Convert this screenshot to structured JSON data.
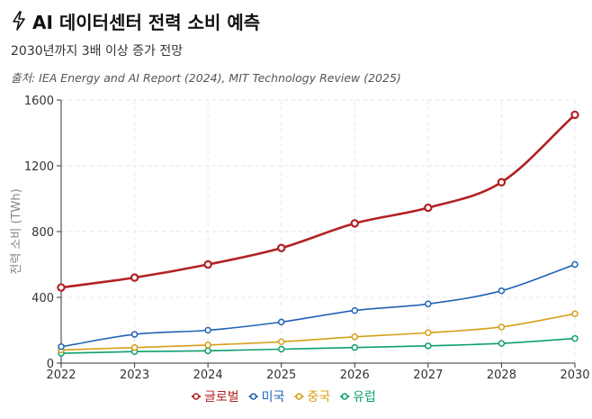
{
  "header": {
    "title": "AI 데이터센터 전력 소비 예측",
    "subtitle": "2030년까지 3배 이상 증가 전망",
    "source": "출처: IEA Energy and AI Report (2024), MIT Technology Review (2025)",
    "icon": "lightning-icon"
  },
  "chart_data": {
    "type": "line",
    "title": "AI 데이터센터 전력 소비 예측",
    "subtitle": "2030년까지 3배 이상 증가 전망",
    "xlabel": "",
    "ylabel": "전력 소비 (TWh)",
    "x": [
      "2022",
      "2023",
      "2024",
      "2025",
      "2026",
      "2027",
      "2028",
      "2030"
    ],
    "ylim": [
      0,
      1600
    ],
    "yticks": [
      "0",
      "400",
      "800",
      "1200",
      "1600"
    ],
    "grid": true,
    "legend_position": "bottom",
    "series": [
      {
        "name": "글로벌",
        "color": "#b22222",
        "values": [
          460,
          520,
          600,
          700,
          850,
          945,
          1100,
          1510
        ]
      },
      {
        "name": "미국",
        "color": "#1f63b5",
        "values": [
          100,
          175,
          200,
          250,
          320,
          360,
          440,
          600
        ]
      },
      {
        "name": "중국",
        "color": "#d4a017",
        "values": [
          80,
          95,
          110,
          130,
          160,
          185,
          220,
          300
        ]
      },
      {
        "name": "유럽",
        "color": "#0e9f6e",
        "values": [
          60,
          70,
          75,
          85,
          95,
          105,
          120,
          150
        ]
      }
    ]
  }
}
